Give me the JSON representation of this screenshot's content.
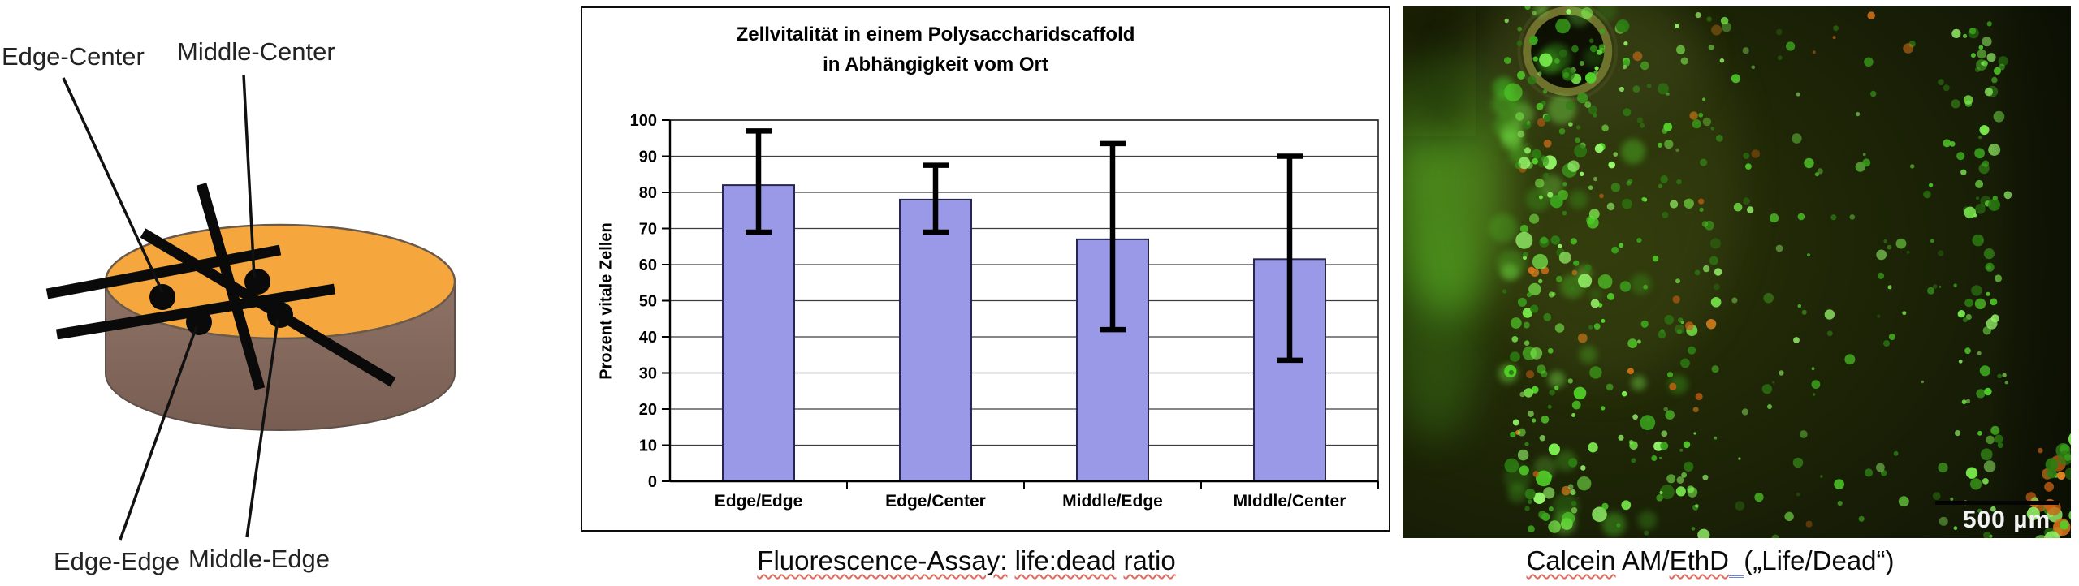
{
  "diagram": {
    "labels": {
      "edge_center": "Edge-Center",
      "middle_center": "Middle-Center",
      "edge_edge": "Edge-Edge",
      "middle_edge": "Middle-Edge"
    },
    "colors": {
      "disc_top": "#F5A73E",
      "disc_side": "#8B6F63",
      "disc_side_dark": "#785D52",
      "marker_black": "#0a0a0a"
    }
  },
  "chart_data": {
    "type": "bar",
    "title": "Zellvitalität in einem Polysaccharidscaffold in Abhängigkeit vom Ort",
    "title_lines": [
      "Zellvitalität in einem Polysaccharidscaffold",
      "in Abhängigkeit vom Ort"
    ],
    "ylabel": "Prozent vitale Zellen",
    "xlabel": "",
    "categories": [
      "Edge/Edge",
      "Edge/Center",
      "Middle/Edge",
      "MIddle/Center"
    ],
    "values": [
      82,
      78,
      67,
      61.5
    ],
    "error_low": [
      69,
      69,
      42,
      33.5
    ],
    "error_high": [
      97,
      87.5,
      93.5,
      90
    ],
    "ylim": [
      0,
      100
    ],
    "yticks": [
      0,
      10,
      20,
      30,
      40,
      50,
      60,
      70,
      80,
      90,
      100
    ],
    "grid": true,
    "legend": null,
    "bar_color": "#9999E8",
    "bar_border": "#26264f"
  },
  "captions": {
    "chart": {
      "segments": [
        {
          "t": "Fluorescence-Assay:",
          "u": "wavy"
        },
        {
          "t": " "
        },
        {
          "t": "life:dead",
          "u": "wavy"
        },
        {
          "t": " "
        },
        {
          "t": "ratio",
          "u": "wavy"
        }
      ]
    },
    "photo": {
      "segments": [
        {
          "t": "Calcein",
          "u": "wavy"
        },
        {
          "t": " AM/"
        },
        {
          "t": "EthD",
          "u": "wavy"
        },
        {
          "t": "  ",
          "u": "blue"
        },
        {
          "t": "(„Life/Dead“)"
        }
      ]
    }
  },
  "micrograph": {
    "scale_bar_label": "500 µm",
    "background": "#161c06",
    "stain_colors": {
      "live_green_bright": "#7df24f",
      "live_green": "#52d32a",
      "live_green_dim": "#2c7d12",
      "dead_orange": "#d9731a",
      "ring_olive": "#73752f"
    }
  }
}
